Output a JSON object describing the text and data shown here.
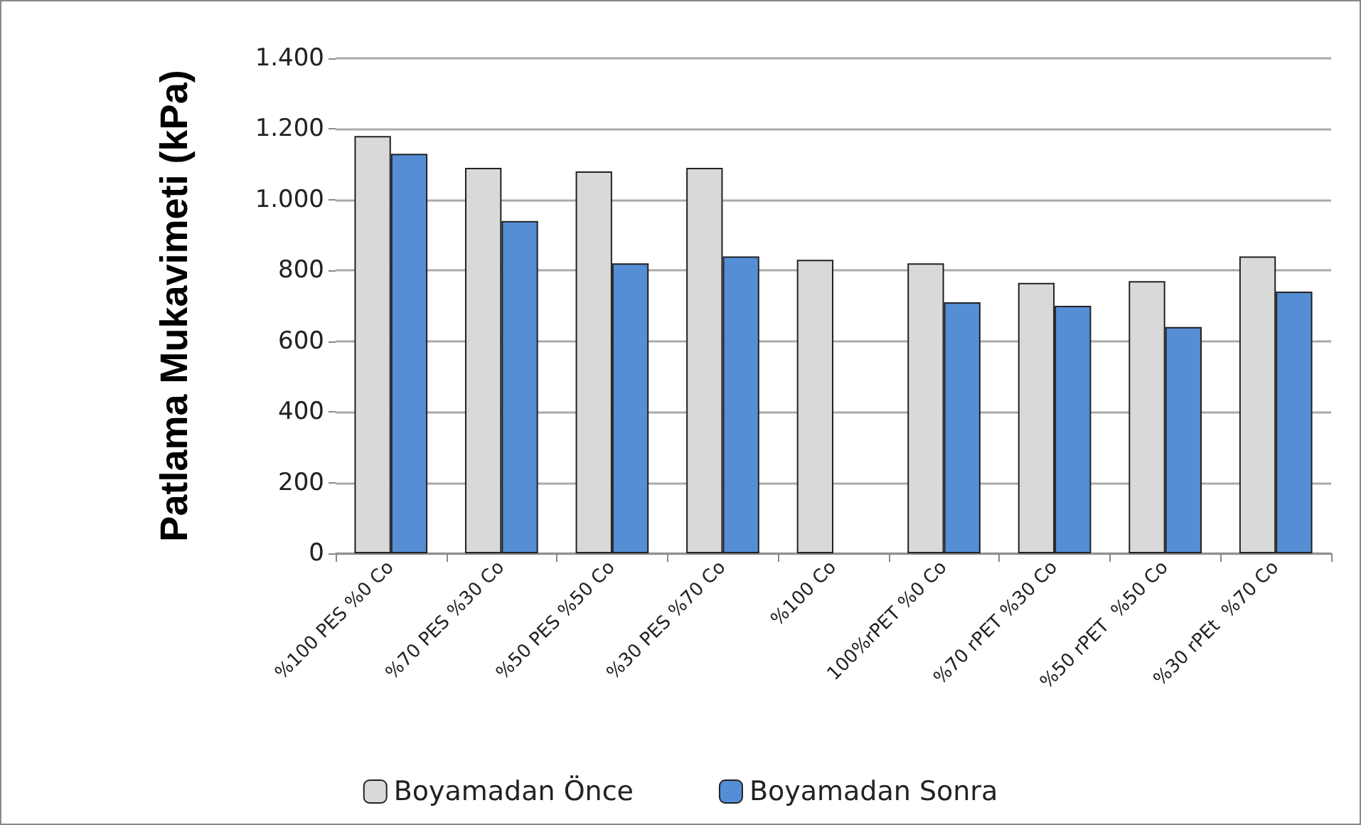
{
  "chart_data": {
    "type": "bar",
    "ylabel": "Patlama Mukavimeti (kPa)",
    "categories": [
      "%100 PES %0 Co",
      "%70 PES %30 Co",
      "%50 PES %50 Co",
      "%30 PES %70 Co",
      "%100 Co",
      "100%rPET %0 Co",
      "%70 rPET %30 Co",
      "%50 rPET  %50 Co",
      "%30 rPEt  %70 Co"
    ],
    "series": [
      {
        "name": "Boyamadan Önce",
        "color": "#d9d9d9",
        "values": [
          1180,
          1090,
          1080,
          1090,
          830,
          820,
          765,
          770,
          840
        ]
      },
      {
        "name": "Boyamadan Sonra",
        "color": "#558ed5",
        "values": [
          1130,
          940,
          820,
          840,
          null,
          710,
          700,
          640,
          740
        ]
      }
    ],
    "ylim": [
      0,
      1400
    ],
    "yticks": [
      0,
      200,
      400,
      600,
      800,
      {
        "value": 1000,
        "label": "1.000"
      },
      {
        "value": 1200,
        "label": "1.200"
      },
      {
        "value": 1400,
        "label": "1.400"
      }
    ],
    "grid": "y",
    "legend": "bottom"
  }
}
